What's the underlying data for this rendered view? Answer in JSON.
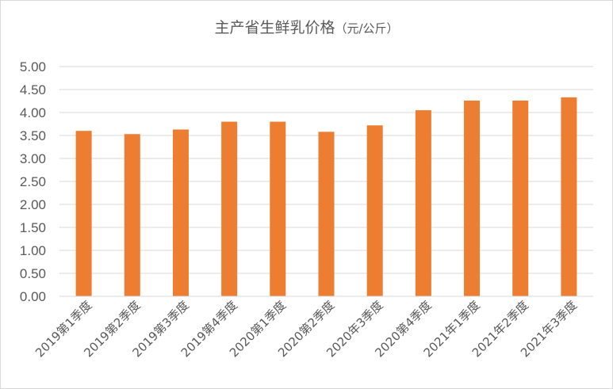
{
  "chart_data": {
    "type": "bar",
    "title": "主产省生鲜乳价格",
    "unit": "（元/公斤）",
    "categories": [
      "2019第1季度",
      "2019第2季度",
      "2019第3季度",
      "2019第4季度",
      "2020第1季度",
      "2020第2季度",
      "2020年3季度",
      "2020第4季度",
      "2021年1季度",
      "2021年2季度",
      "2021年3季度"
    ],
    "values": [
      3.6,
      3.53,
      3.63,
      3.8,
      3.8,
      3.58,
      3.72,
      4.05,
      4.26,
      4.26,
      4.33
    ],
    "ylim": [
      0,
      5
    ],
    "yticks": [
      "0.00",
      "0.50",
      "1.00",
      "1.50",
      "2.00",
      "2.50",
      "3.00",
      "3.50",
      "4.00",
      "4.50",
      "5.00"
    ],
    "xlabel": "",
    "ylabel": "",
    "grid": true,
    "legend": "none",
    "bar_color": "#ED7D31",
    "grid_color": "#D9D9D9"
  }
}
